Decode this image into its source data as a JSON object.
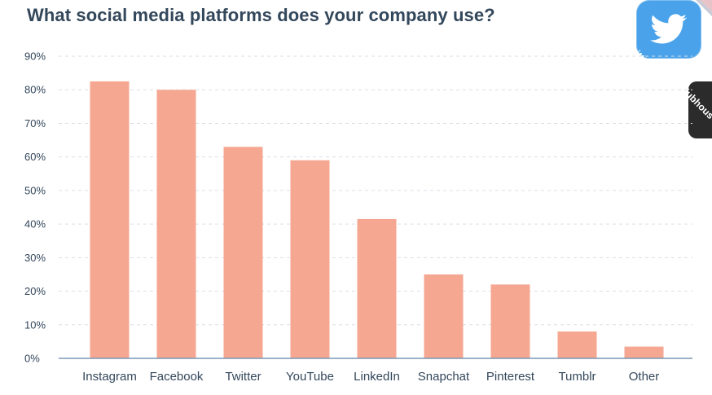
{
  "title": "What social media platforms does your company use?",
  "colors": {
    "bar": "#f5a792",
    "axis": "#7c98b6",
    "grid": "#d9dfe6",
    "text": "#33475b"
  },
  "corner_apps": {
    "twitter_label": "Twitter",
    "twitter_icon": "twitter-bird-icon",
    "clubhouse_label": "Clubhous"
  },
  "chart_data": {
    "type": "bar",
    "title": "What social media platforms does your company use?",
    "categories": [
      "Instagram",
      "Facebook",
      "Twitter",
      "YouTube",
      "LinkedIn",
      "Snapchat",
      "Pinterest",
      "Tumblr",
      "Other"
    ],
    "values": [
      82.5,
      80,
      63,
      59,
      41.5,
      25,
      22,
      8,
      3.5
    ],
    "ylim": [
      0,
      90
    ],
    "yticks": [
      "0%",
      "10%",
      "20%",
      "30%",
      "40%",
      "50%",
      "60%",
      "70%",
      "80%",
      "90%"
    ],
    "xlabel": "",
    "ylabel": "",
    "grid": true
  }
}
